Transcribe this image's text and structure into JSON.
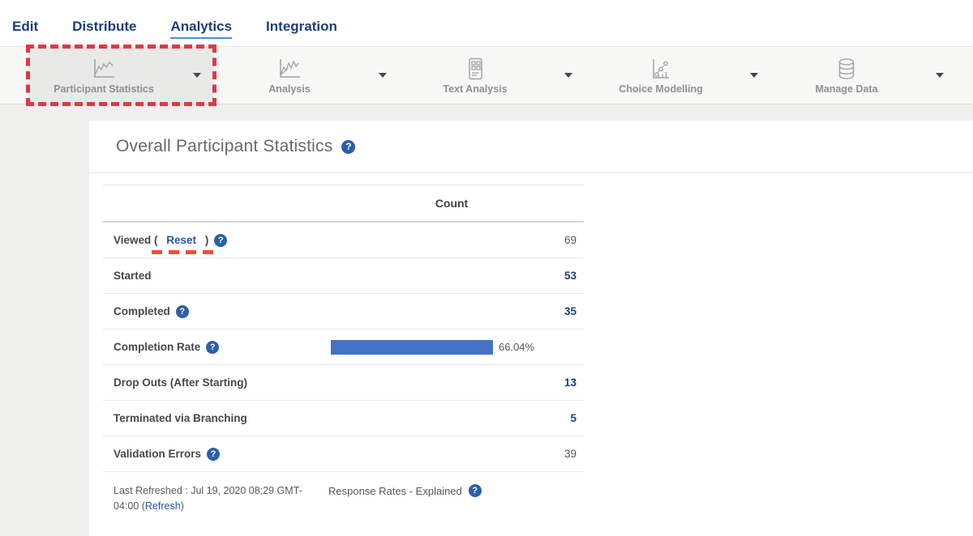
{
  "colors": {
    "annotation_red": "#dd3848",
    "underline_red": "#e8513f",
    "bar_blue": "#4472c4",
    "nav_blue": "#1d3d7c",
    "link_blue": "#2256a7",
    "value_blue": "#1e3e7e",
    "active_underline_blue": "#4e8fd0"
  },
  "nav": {
    "items": [
      {
        "label": "Edit",
        "active": false
      },
      {
        "label": "Distribute",
        "active": false
      },
      {
        "label": "Analytics",
        "active": true
      },
      {
        "label": "Integration",
        "active": false
      }
    ]
  },
  "toolbar": {
    "items": [
      {
        "label": "Participant Statistics",
        "icon": "line-chart-icon",
        "active": true,
        "annotated": true
      },
      {
        "label": "Analysis",
        "icon": "trend-chart-icon",
        "active": false,
        "annotated": false
      },
      {
        "label": "Text Analysis",
        "icon": "document-grid-icon",
        "active": false,
        "annotated": false
      },
      {
        "label": "Choice Modelling",
        "icon": "scatter-chart-icon",
        "active": false,
        "annotated": false
      },
      {
        "label": "Manage Data",
        "icon": "database-icon",
        "active": false,
        "annotated": false
      }
    ]
  },
  "main": {
    "title": "Overall Participant Statistics",
    "table": {
      "count_header": "Count",
      "rows": [
        {
          "id": "viewed",
          "label_prefix": "Viewed ( ",
          "link_label": "Reset",
          "label_suffix": " )",
          "help": true,
          "value": "69",
          "value_type": "plain",
          "annotated": true
        },
        {
          "id": "started",
          "label": "Started",
          "help": false,
          "value": "53",
          "value_type": "link"
        },
        {
          "id": "completed",
          "label": "Completed",
          "help": true,
          "value": "35",
          "value_type": "link"
        },
        {
          "id": "completion-rate",
          "label": "Completion Rate",
          "help": true,
          "value_type": "bar",
          "bar_percent": 66.04,
          "bar_label": "66.04%"
        },
        {
          "id": "drop-outs",
          "label": "Drop Outs (After Starting)",
          "help": false,
          "value": "13",
          "value_type": "link"
        },
        {
          "id": "terminated",
          "label": "Terminated via Branching",
          "help": false,
          "value": "5",
          "value_type": "link"
        },
        {
          "id": "validation-errors",
          "label": "Validation Errors",
          "help": true,
          "value": "39",
          "value_type": "plain"
        }
      ]
    },
    "footer": {
      "last_refreshed": "Last Refreshed : Jul 19, 2020 08:29 GMT-04:00",
      "refresh_open_paren": " (",
      "refresh_link": "Refresh",
      "refresh_close_paren": ")",
      "response_rates": "Response Rates - Explained"
    }
  },
  "help_glyph": "?"
}
